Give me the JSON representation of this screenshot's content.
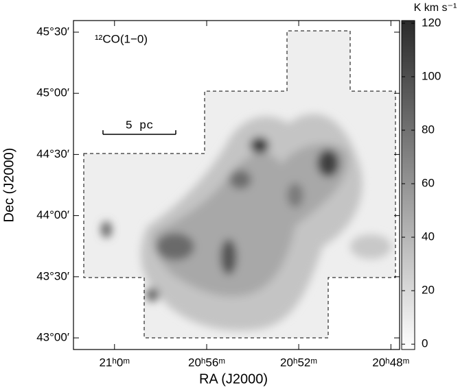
{
  "chart_data": {
    "type": "image",
    "title": "¹²CO(1−0)",
    "annotation": "5 pc",
    "xlabel": "RA (J2000)",
    "ylabel": "Dec (J2000)",
    "xlim": [
      21.0297,
      20.7937
    ],
    "xticks": [
      {
        "value": 21.0,
        "label": "21ʰ0ᵐ"
      },
      {
        "value": 20.9333,
        "label": "20ʰ56ᵐ"
      },
      {
        "value": 20.8667,
        "label": "20ʰ52ᵐ"
      },
      {
        "value": 20.8,
        "label": "20ʰ48ᵐ"
      }
    ],
    "ylim": [
      42.905,
      45.595
    ],
    "yticks": [
      {
        "value": 43.0,
        "label": "43°00′"
      },
      {
        "value": 43.5,
        "label": "43°30′"
      },
      {
        "value": 44.0,
        "label": "44°00′"
      },
      {
        "value": 44.5,
        "label": "44°30′"
      },
      {
        "value": 45.0,
        "label": "45°00′"
      },
      {
        "value": 45.5,
        "label": "45°30′"
      }
    ],
    "colorbar": {
      "label": "K km s⁻¹",
      "clim": [
        -2,
        121
      ],
      "ticks": [
        0,
        20,
        40,
        60,
        80,
        100,
        120
      ],
      "colormap": [
        "#ffffff",
        "#2a2a2a"
      ]
    }
  }
}
